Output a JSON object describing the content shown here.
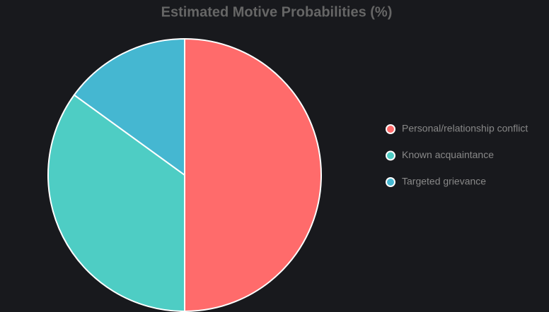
{
  "chart_data": {
    "type": "pie",
    "title": "Estimated Motive Probabilities (%)",
    "categories": [
      "Personal/relationship conflict",
      "Known acquaintance",
      "Targeted grievance"
    ],
    "values": [
      50,
      35,
      15
    ],
    "colors": [
      "#ff6b6b",
      "#4ecdc4",
      "#45b7d1"
    ],
    "legend": "right"
  }
}
